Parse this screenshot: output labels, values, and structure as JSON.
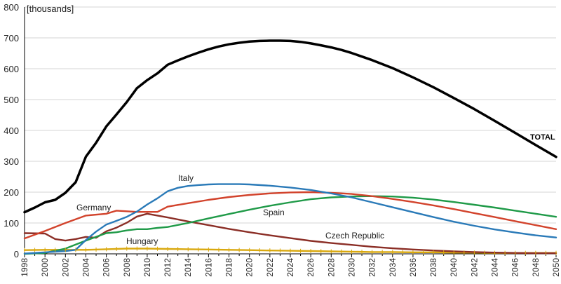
{
  "chart_data": {
    "type": "line",
    "unit_label": "[thousands]",
    "title": "",
    "xlabel": "",
    "ylabel": "",
    "xlim": [
      1998,
      2050
    ],
    "ylim": [
      0,
      800
    ],
    "yticks": [
      0,
      100,
      200,
      300,
      400,
      500,
      600,
      700,
      800
    ],
    "xticks": [
      1998,
      2000,
      2002,
      2004,
      2006,
      2008,
      2010,
      2012,
      2014,
      2016,
      2018,
      2020,
      2022,
      2024,
      2026,
      2028,
      2030,
      2032,
      2034,
      2036,
      2038,
      2040,
      2042,
      2044,
      2046,
      2048,
      2050
    ],
    "grid": "horizontal",
    "legend": "none (series labeled inline)",
    "series": [
      {
        "name": "TOTAL",
        "color": "#000000",
        "points": [
          [
            1998,
            135
          ],
          [
            1999,
            150
          ],
          [
            2000,
            167
          ],
          [
            2001,
            175
          ],
          [
            2002,
            198
          ],
          [
            2003,
            232
          ],
          [
            2004,
            315
          ],
          [
            2005,
            360
          ],
          [
            2006,
            413
          ],
          [
            2007,
            452
          ],
          [
            2008,
            492
          ],
          [
            2009,
            537
          ],
          [
            2010,
            563
          ],
          [
            2011,
            585
          ],
          [
            2012,
            613
          ],
          [
            2013,
            627
          ],
          [
            2014,
            640
          ],
          [
            2015,
            652
          ],
          [
            2016,
            663
          ],
          [
            2017,
            672
          ],
          [
            2018,
            679
          ],
          [
            2019,
            684
          ],
          [
            2020,
            688
          ],
          [
            2021,
            690
          ],
          [
            2022,
            691
          ],
          [
            2023,
            691
          ],
          [
            2024,
            690
          ],
          [
            2025,
            687
          ],
          [
            2026,
            682
          ],
          [
            2027,
            676
          ],
          [
            2028,
            669
          ],
          [
            2029,
            661
          ],
          [
            2030,
            651
          ],
          [
            2032,
            628
          ],
          [
            2034,
            602
          ],
          [
            2036,
            572
          ],
          [
            2038,
            540
          ],
          [
            2040,
            505
          ],
          [
            2042,
            469
          ],
          [
            2044,
            431
          ],
          [
            2046,
            392
          ],
          [
            2048,
            353
          ],
          [
            2050,
            314
          ]
        ]
      },
      {
        "name": "Italy",
        "color": "#2a7ab8",
        "points": [
          [
            1998,
            1
          ],
          [
            2000,
            5
          ],
          [
            2002,
            9
          ],
          [
            2003,
            13
          ],
          [
            2004,
            45
          ],
          [
            2005,
            72
          ],
          [
            2006,
            95
          ],
          [
            2007,
            107
          ],
          [
            2008,
            120
          ],
          [
            2009,
            137
          ],
          [
            2010,
            160
          ],
          [
            2011,
            180
          ],
          [
            2012,
            203
          ],
          [
            2013,
            214
          ],
          [
            2014,
            220
          ],
          [
            2015,
            223
          ],
          [
            2016,
            225
          ],
          [
            2017,
            226
          ],
          [
            2018,
            226
          ],
          [
            2019,
            226
          ],
          [
            2020,
            225
          ],
          [
            2022,
            221
          ],
          [
            2024,
            215
          ],
          [
            2026,
            207
          ],
          [
            2028,
            196
          ],
          [
            2030,
            183
          ],
          [
            2032,
            167
          ],
          [
            2034,
            151
          ],
          [
            2036,
            135
          ],
          [
            2038,
            119
          ],
          [
            2040,
            104
          ],
          [
            2042,
            91
          ],
          [
            2044,
            79
          ],
          [
            2046,
            69
          ],
          [
            2048,
            60
          ],
          [
            2050,
            53
          ]
        ]
      },
      {
        "name": "Germany",
        "color": "#d2432c",
        "points": [
          [
            1998,
            50
          ],
          [
            2000,
            74
          ],
          [
            2002,
            100
          ],
          [
            2004,
            124
          ],
          [
            2006,
            130
          ],
          [
            2007,
            140
          ],
          [
            2008,
            138
          ],
          [
            2009,
            136
          ],
          [
            2010,
            136
          ],
          [
            2011,
            136
          ],
          [
            2012,
            153
          ],
          [
            2014,
            164
          ],
          [
            2016,
            175
          ],
          [
            2018,
            184
          ],
          [
            2020,
            191
          ],
          [
            2022,
            196
          ],
          [
            2024,
            199
          ],
          [
            2026,
            200
          ],
          [
            2028,
            198
          ],
          [
            2030,
            194
          ],
          [
            2032,
            187
          ],
          [
            2034,
            178
          ],
          [
            2036,
            168
          ],
          [
            2038,
            157
          ],
          [
            2040,
            145
          ],
          [
            2042,
            132
          ],
          [
            2044,
            119
          ],
          [
            2046,
            106
          ],
          [
            2048,
            93
          ],
          [
            2050,
            80
          ]
        ]
      },
      {
        "name": "Spain",
        "color": "#1f9a48",
        "points": [
          [
            1998,
            0
          ],
          [
            2000,
            3
          ],
          [
            2002,
            17
          ],
          [
            2003,
            30
          ],
          [
            2004,
            43
          ],
          [
            2005,
            55
          ],
          [
            2006,
            67
          ],
          [
            2007,
            70
          ],
          [
            2008,
            76
          ],
          [
            2009,
            80
          ],
          [
            2010,
            80
          ],
          [
            2011,
            84
          ],
          [
            2012,
            87
          ],
          [
            2014,
            100
          ],
          [
            2016,
            115
          ],
          [
            2018,
            129
          ],
          [
            2020,
            143
          ],
          [
            2022,
            156
          ],
          [
            2024,
            167
          ],
          [
            2026,
            177
          ],
          [
            2028,
            183
          ],
          [
            2030,
            186
          ],
          [
            2032,
            187
          ],
          [
            2034,
            186
          ],
          [
            2036,
            182
          ],
          [
            2038,
            176
          ],
          [
            2040,
            168
          ],
          [
            2042,
            159
          ],
          [
            2044,
            150
          ],
          [
            2046,
            140
          ],
          [
            2048,
            130
          ],
          [
            2050,
            120
          ]
        ]
      },
      {
        "name": "Czech Republic",
        "color": "#8b2e26",
        "points": [
          [
            1998,
            67
          ],
          [
            2000,
            66
          ],
          [
            2001,
            48
          ],
          [
            2002,
            43
          ],
          [
            2003,
            48
          ],
          [
            2004,
            55
          ],
          [
            2005,
            52
          ],
          [
            2006,
            73
          ],
          [
            2007,
            85
          ],
          [
            2008,
            101
          ],
          [
            2009,
            121
          ],
          [
            2010,
            130
          ],
          [
            2011,
            124
          ],
          [
            2012,
            118
          ],
          [
            2014,
            105
          ],
          [
            2016,
            93
          ],
          [
            2018,
            81
          ],
          [
            2020,
            70
          ],
          [
            2022,
            60
          ],
          [
            2024,
            51
          ],
          [
            2026,
            42
          ],
          [
            2028,
            35
          ],
          [
            2030,
            29
          ],
          [
            2032,
            23
          ],
          [
            2034,
            18
          ],
          [
            2036,
            14
          ],
          [
            2038,
            11
          ],
          [
            2040,
            8
          ],
          [
            2042,
            6
          ],
          [
            2044,
            4
          ],
          [
            2046,
            3
          ],
          [
            2048,
            2
          ],
          [
            2050,
            2
          ]
        ]
      },
      {
        "name": "Hungary",
        "color": "#d9a80e",
        "points": [
          [
            1998,
            12
          ],
          [
            2000,
            13
          ],
          [
            2002,
            13
          ],
          [
            2004,
            13
          ],
          [
            2006,
            15
          ],
          [
            2008,
            17
          ],
          [
            2010,
            17
          ],
          [
            2012,
            16
          ],
          [
            2014,
            15
          ],
          [
            2016,
            14
          ],
          [
            2018,
            13
          ],
          [
            2020,
            12
          ],
          [
            2022,
            11
          ],
          [
            2024,
            10
          ],
          [
            2026,
            9
          ],
          [
            2028,
            8
          ],
          [
            2030,
            7
          ],
          [
            2032,
            6
          ],
          [
            2034,
            6
          ],
          [
            2036,
            5
          ],
          [
            2038,
            5
          ],
          [
            2040,
            4
          ],
          [
            2042,
            4
          ],
          [
            2044,
            3
          ],
          [
            2046,
            3
          ],
          [
            2048,
            3
          ],
          [
            2050,
            3
          ]
        ]
      }
    ],
    "labels": [
      {
        "series": "TOTAL",
        "text": "TOTAL"
      },
      {
        "series": "Italy",
        "text": "Italy"
      },
      {
        "series": "Germany",
        "text": "Germany"
      },
      {
        "series": "Spain",
        "text": "Spain"
      },
      {
        "series": "Czech Republic",
        "text": "Czech Republic"
      },
      {
        "series": "Hungary",
        "text": "Hungary"
      }
    ]
  }
}
